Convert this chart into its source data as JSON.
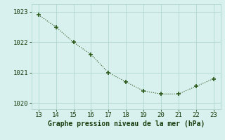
{
  "x": [
    13,
    14,
    15,
    16,
    17,
    18,
    19,
    20,
    21,
    22,
    23
  ],
  "y": [
    1022.9,
    1022.5,
    1022.0,
    1021.6,
    1021.0,
    1020.7,
    1020.4,
    1020.3,
    1020.3,
    1020.55,
    1020.8
  ],
  "line_color": "#2d5a1b",
  "marker_color": "#2d5a1b",
  "bg_color": "#d8f0ee",
  "grid_color": "#b0d8d0",
  "xlabel": "Graphe pression niveau de la mer (hPa)",
  "xlabel_color": "#1a4010",
  "xlabel_fontsize": 7.0,
  "tick_color": "#1a4010",
  "tick_fontsize": 6.5,
  "ylim": [
    1019.8,
    1023.25
  ],
  "xlim": [
    12.6,
    23.4
  ],
  "yticks": [
    1020,
    1021,
    1022,
    1023
  ],
  "xticks": [
    13,
    14,
    15,
    16,
    17,
    18,
    19,
    20,
    21,
    22,
    23
  ]
}
